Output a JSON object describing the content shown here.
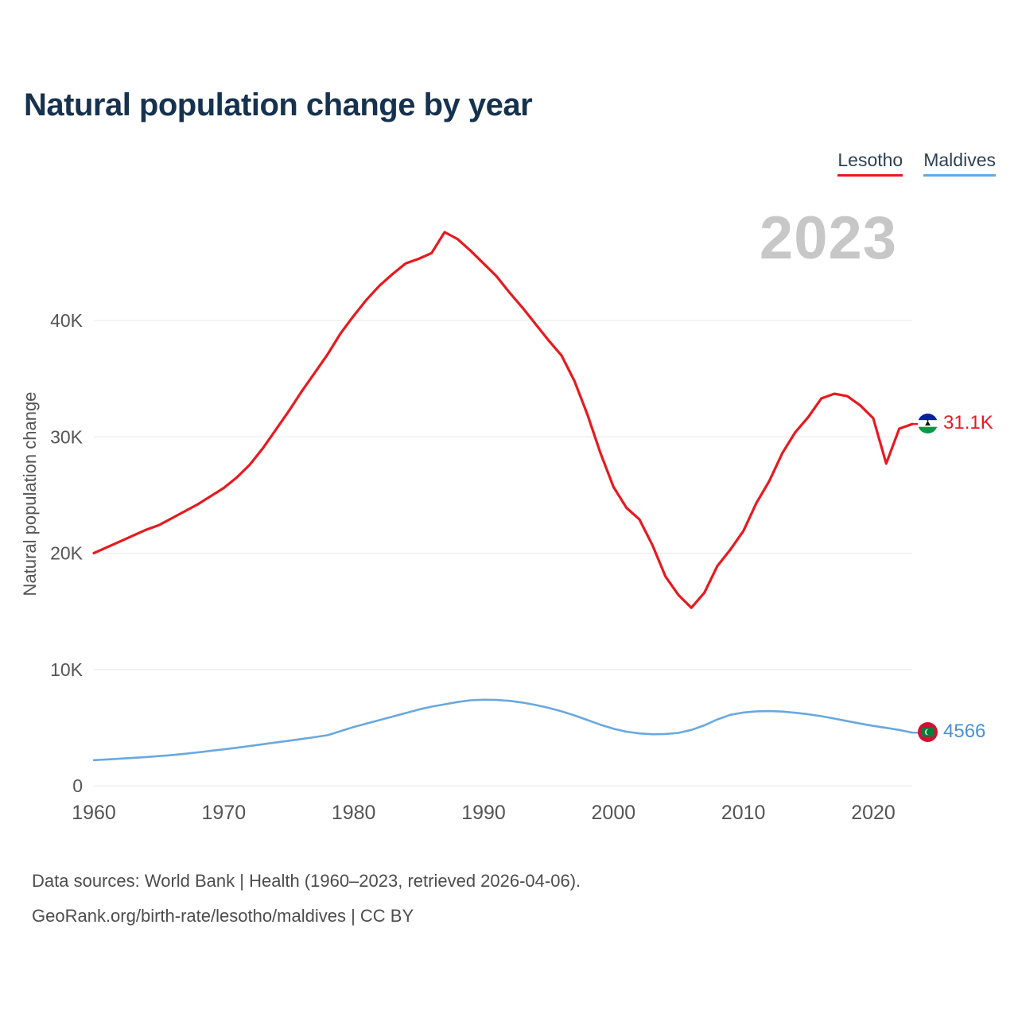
{
  "watermark": "2023",
  "legend": [
    {
      "label": "Lesotho"
    },
    {
      "label": "Maldives"
    }
  ],
  "end_labels": [
    {
      "series": "Lesotho",
      "value": "31.1K",
      "color": "#e8191f",
      "flag": "lesotho-flag"
    },
    {
      "series": "Maldives",
      "value": "4566",
      "color": "#4a90d8",
      "flag": "maldives-flag"
    }
  ],
  "footer": {
    "line1": "Data sources: World Bank | Health (1960–2023, retrieved 2026-04-06).",
    "line2": "GeoRank.org/birth-rate/lesotho/maldives | CC BY"
  },
  "chart_data": {
    "type": "line",
    "title": "Natural population change by year",
    "xlabel": "",
    "ylabel": "Natural population change",
    "ylim": [
      0,
      48000
    ],
    "grid": true,
    "legend_position": "top-right",
    "xticks": [
      1960,
      1970,
      1980,
      1990,
      2000,
      2010,
      2020
    ],
    "yticks": [
      {
        "value": 0,
        "label": "0"
      },
      {
        "value": 10000,
        "label": "10K"
      },
      {
        "value": 20000,
        "label": "20K"
      },
      {
        "value": 30000,
        "label": "30K"
      },
      {
        "value": 40000,
        "label": "40K"
      }
    ],
    "x": [
      1960,
      1961,
      1962,
      1963,
      1964,
      1965,
      1966,
      1967,
      1968,
      1969,
      1970,
      1971,
      1972,
      1973,
      1974,
      1975,
      1976,
      1977,
      1978,
      1979,
      1980,
      1981,
      1982,
      1983,
      1984,
      1985,
      1986,
      1987,
      1988,
      1989,
      1990,
      1991,
      1992,
      1993,
      1994,
      1995,
      1996,
      1997,
      1998,
      1999,
      2000,
      2001,
      2002,
      2003,
      2004,
      2005,
      2006,
      2007,
      2008,
      2009,
      2010,
      2011,
      2012,
      2013,
      2014,
      2015,
      2016,
      2017,
      2018,
      2019,
      2020,
      2021,
      2022,
      2023
    ],
    "series": [
      {
        "name": "Lesotho",
        "color": "#e8191f",
        "values": [
          20000,
          20500,
          21000,
          21500,
          22000,
          22400,
          23000,
          23600,
          24200,
          24900,
          25600,
          26500,
          27600,
          29000,
          30600,
          32200,
          33900,
          35500,
          37100,
          38900,
          40400,
          41800,
          43000,
          44000,
          44900,
          45300,
          45800,
          47600,
          47000,
          46000,
          44900,
          43800,
          42400,
          41100,
          39700,
          38300,
          37000,
          34800,
          31900,
          28600,
          25700,
          23900,
          22900,
          20700,
          18000,
          16400,
          15300,
          16600,
          18900,
          20300,
          21900,
          24300,
          26200,
          28600,
          30400,
          31700,
          33300,
          33700,
          33500,
          32700,
          31600,
          27700,
          30700,
          31100
        ]
      },
      {
        "name": "Maldives",
        "color": "#6aa8dd",
        "values": [
          2200,
          2260,
          2330,
          2400,
          2470,
          2550,
          2640,
          2750,
          2870,
          3000,
          3130,
          3270,
          3420,
          3570,
          3720,
          3870,
          4020,
          4180,
          4350,
          4700,
          5050,
          5350,
          5650,
          5950,
          6250,
          6550,
          6800,
          7000,
          7200,
          7350,
          7400,
          7380,
          7300,
          7150,
          6950,
          6700,
          6400,
          6050,
          5650,
          5250,
          4900,
          4650,
          4500,
          4430,
          4450,
          4550,
          4800,
          5200,
          5700,
          6100,
          6300,
          6400,
          6420,
          6380,
          6280,
          6150,
          5980,
          5780,
          5560,
          5350,
          5150,
          4980,
          4800,
          4566
        ]
      }
    ]
  }
}
